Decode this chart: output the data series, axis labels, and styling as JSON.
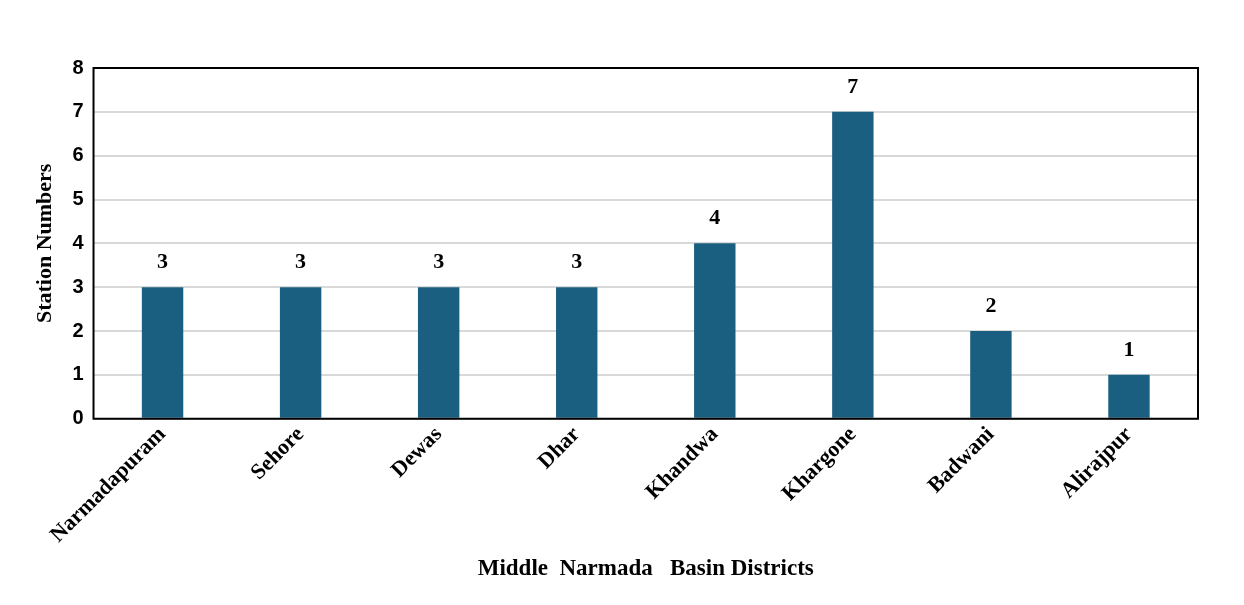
{
  "chart_data": {
    "type": "bar",
    "xlabel": "Middle  Narmada   Basin Districts",
    "ylabel": "Station Numbers",
    "categories": [
      "Narmadapuram",
      "Sehore",
      "Dewas",
      "Dhar",
      "Khandwa",
      "Khargone",
      "Badwani",
      "Alirajpur"
    ],
    "values": [
      3,
      3,
      3,
      3,
      4,
      7,
      2,
      1
    ],
    "color": "#1a5f80",
    "ylim": [
      0,
      8
    ],
    "yticks": [
      0,
      1,
      2,
      3,
      4,
      5,
      6,
      7,
      8
    ],
    "grid": "y",
    "data_labels": true,
    "legend": false
  }
}
